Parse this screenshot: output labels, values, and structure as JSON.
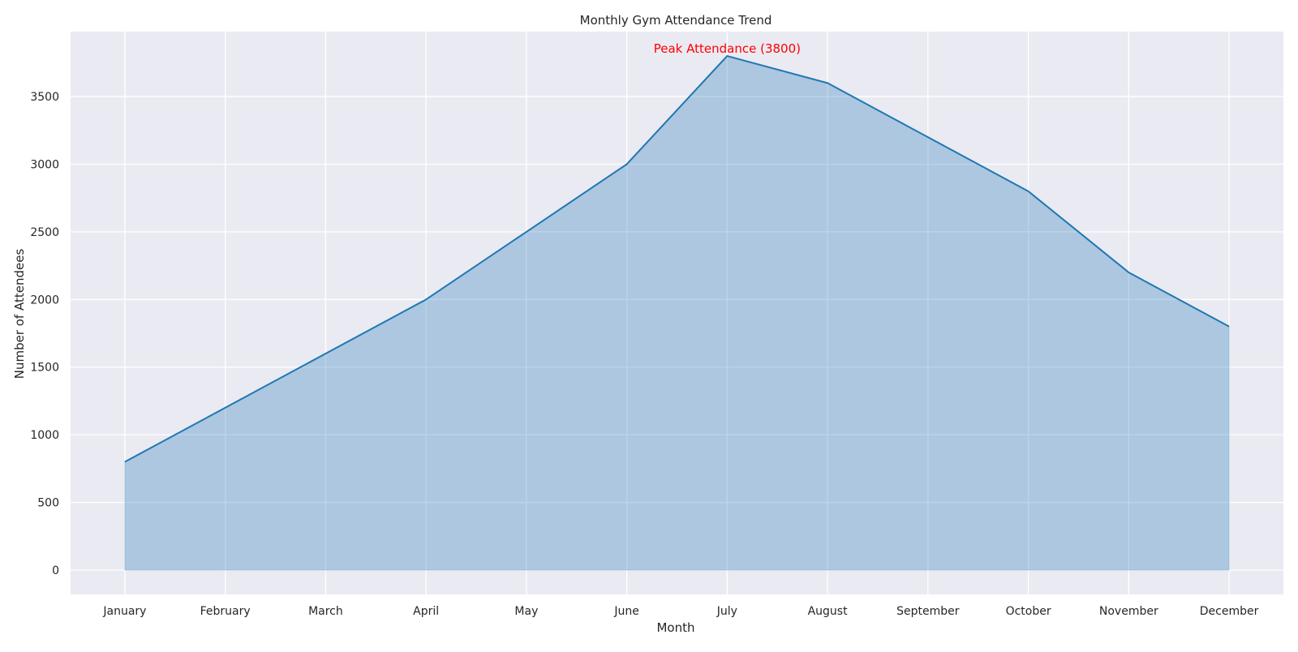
{
  "chart_data": {
    "type": "area",
    "title": "Monthly Gym Attendance Trend",
    "xlabel": "Month",
    "ylabel": "Number of Attendees",
    "categories": [
      "January",
      "February",
      "March",
      "April",
      "May",
      "June",
      "July",
      "August",
      "September",
      "October",
      "November",
      "December"
    ],
    "series": [
      {
        "values": [
          800,
          1200,
          1600,
          2000,
          2500,
          3000,
          3800,
          3600,
          3200,
          2800,
          2200,
          1800
        ]
      }
    ],
    "ylim": [
      -180,
      3980
    ],
    "yticks": [
      0,
      500,
      1000,
      1500,
      2000,
      2500,
      3000,
      3500
    ],
    "grid": true,
    "annotation": {
      "text": "Peak Attendance (3800)",
      "category": "July",
      "value": 3800
    },
    "colors": {
      "line": "#1f77b4",
      "fill": "#1f77b4",
      "annotation": "#ff0000",
      "plot_background": "#eaeaf2",
      "grid": "#ffffff"
    }
  }
}
